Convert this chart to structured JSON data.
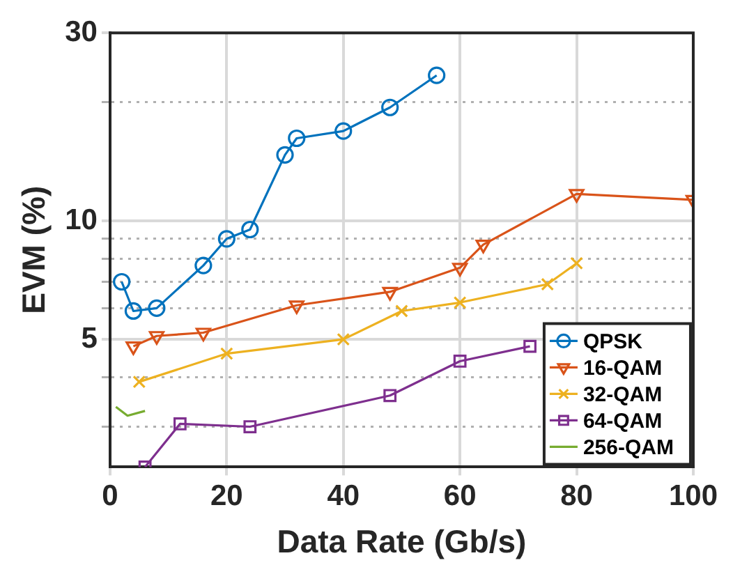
{
  "chart_data": {
    "type": "line",
    "xlabel": "Data Rate (Gb/s)",
    "ylabel": "EVM (%)",
    "log": "y",
    "xlim": [
      0,
      100
    ],
    "xticks": [
      0,
      20,
      40,
      60,
      80,
      100
    ],
    "ylim": [
      2.37,
      30
    ],
    "yticks": [
      {
        "value": 3,
        "label": null
      },
      {
        "value": 4,
        "label": null
      },
      5,
      {
        "value": 6,
        "label": null
      },
      {
        "value": 7,
        "label": null
      },
      {
        "value": 8,
        "label": null
      },
      {
        "value": 9,
        "label": null
      },
      10,
      {
        "value": 20,
        "label": null
      },
      30
    ],
    "grid": true,
    "legend": "bottom right",
    "line_style": "solid",
    "series": [
      {
        "name": "QPSK",
        "color": "#0072bd",
        "marker": "circle",
        "x": [
          2,
          4,
          8,
          16,
          20,
          24,
          30,
          32,
          40,
          48,
          56
        ],
        "values": [
          7.0,
          5.9,
          6.0,
          7.7,
          9.0,
          9.5,
          14.7,
          16.2,
          16.9,
          19.4,
          23.4
        ]
      },
      {
        "name": "16-QAM",
        "color": "#d95319",
        "marker": "triangle",
        "x": [
          4,
          8,
          16,
          32,
          48,
          60,
          64,
          80,
          100
        ],
        "values": [
          4.8,
          5.1,
          5.2,
          6.1,
          6.6,
          7.6,
          8.7,
          11.7,
          11.3
        ]
      },
      {
        "name": "32-QAM",
        "color": "#edb120",
        "marker": "cross",
        "x": [
          5,
          20,
          40,
          50,
          60,
          75,
          80
        ],
        "values": [
          3.9,
          4.6,
          5.0,
          5.9,
          6.2,
          6.9,
          7.8
        ]
      },
      {
        "name": "64-QAM",
        "color": "#7e2f8e",
        "marker": "square",
        "x": [
          6,
          12,
          24,
          48,
          60,
          72
        ],
        "values": [
          2.37,
          3.05,
          3.0,
          3.6,
          4.4,
          4.8
        ]
      },
      {
        "name": "256-QAM",
        "color": "#77ac30",
        "marker": "none",
        "x": [
          1,
          3,
          6
        ],
        "values": [
          3.37,
          3.2,
          3.29
        ]
      }
    ]
  }
}
